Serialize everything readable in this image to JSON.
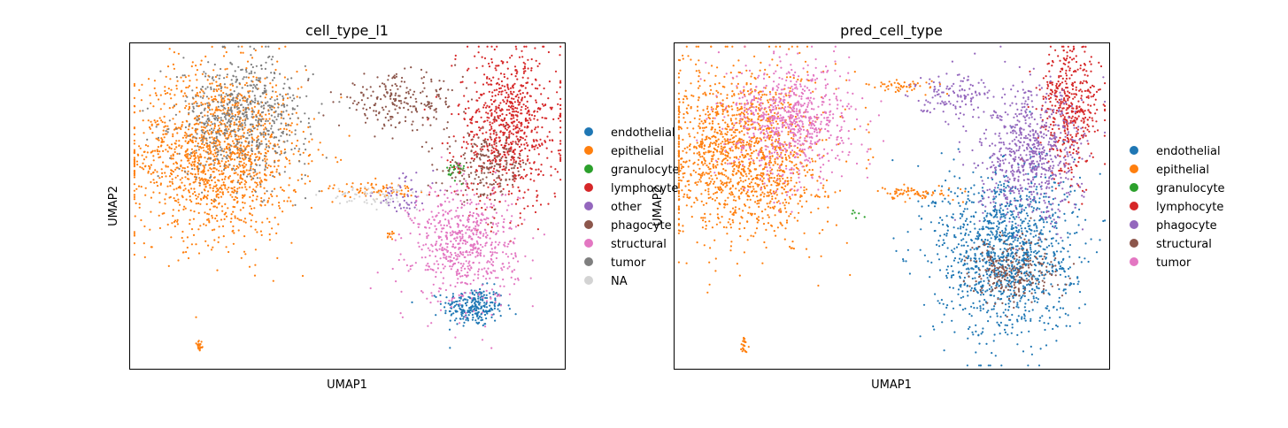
{
  "chart_data": [
    {
      "type": "scatter",
      "title": "cell_type_l1",
      "xlabel": "UMAP1",
      "ylabel": "UMAP2",
      "grid": false,
      "legend_position": "right",
      "series": [
        {
          "name": "endothelial",
          "color": "#1f77b4",
          "clusters": [
            {
              "center": [
                0.79,
                0.19
              ],
              "spread": [
                0.035,
                0.03
              ],
              "n": 260
            }
          ]
        },
        {
          "name": "epithelial",
          "color": "#ff7f0e",
          "clusters": [
            {
              "center": [
                0.2,
                0.66
              ],
              "spread": [
                0.095,
                0.13
              ],
              "n": 1500
            },
            {
              "center": [
                0.56,
                0.55
              ],
              "spread": [
                0.05,
                0.012
              ],
              "n": 70
            },
            {
              "center": [
                0.16,
                0.07
              ],
              "spread": [
                0.004,
                0.012
              ],
              "n": 22
            },
            {
              "center": [
                0.6,
                0.41
              ],
              "spread": [
                0.006,
                0.01
              ],
              "n": 10
            }
          ]
        },
        {
          "name": "granulocyte",
          "color": "#2ca02c",
          "clusters": [
            {
              "center": [
                0.75,
                0.61
              ],
              "spread": [
                0.01,
                0.016
              ],
              "n": 30
            }
          ]
        },
        {
          "name": "lymphocyte",
          "color": "#d62728",
          "clusters": [
            {
              "center": [
                0.87,
                0.74
              ],
              "spread": [
                0.06,
                0.12
              ],
              "n": 800
            }
          ]
        },
        {
          "name": "other",
          "color": "#9467bd",
          "clusters": [
            {
              "center": [
                0.63,
                0.53
              ],
              "spread": [
                0.035,
                0.035
              ],
              "n": 55
            }
          ]
        },
        {
          "name": "phagocyte",
          "color": "#8c564b",
          "clusters": [
            {
              "center": [
                0.62,
                0.82
              ],
              "spread": [
                0.07,
                0.04
              ],
              "n": 220
            },
            {
              "center": [
                0.82,
                0.62
              ],
              "spread": [
                0.05,
                0.05
              ],
              "n": 200
            }
          ]
        },
        {
          "name": "structural",
          "color": "#e377c2",
          "clusters": [
            {
              "center": [
                0.77,
                0.38
              ],
              "spread": [
                0.06,
                0.09
              ],
              "n": 650
            }
          ]
        },
        {
          "name": "tumor",
          "color": "#7f7f7f",
          "clusters": [
            {
              "center": [
                0.26,
                0.77
              ],
              "spread": [
                0.075,
                0.09
              ],
              "n": 650
            }
          ]
        },
        {
          "name": "NA",
          "color": "#d3d3d3",
          "clusters": [
            {
              "center": [
                0.56,
                0.53
              ],
              "spread": [
                0.05,
                0.015
              ],
              "n": 60
            }
          ]
        }
      ]
    },
    {
      "type": "scatter",
      "title": "pred_cell_type",
      "xlabel": "UMAP1",
      "ylabel": "UMAP2",
      "grid": false,
      "legend_position": "right",
      "series": [
        {
          "name": "endothelial",
          "color": "#1f77b4",
          "clusters": [
            {
              "center": [
                0.76,
                0.36
              ],
              "spread": [
                0.08,
                0.13
              ],
              "n": 1300
            }
          ]
        },
        {
          "name": "epithelial",
          "color": "#ff7f0e",
          "clusters": [
            {
              "center": [
                0.16,
                0.66
              ],
              "spread": [
                0.09,
                0.13
              ],
              "n": 1500
            },
            {
              "center": [
                0.56,
                0.54
              ],
              "spread": [
                0.05,
                0.012
              ],
              "n": 70
            },
            {
              "center": [
                0.53,
                0.87
              ],
              "spread": [
                0.04,
                0.01
              ],
              "n": 50
            },
            {
              "center": [
                0.16,
                0.07
              ],
              "spread": [
                0.004,
                0.012
              ],
              "n": 22
            }
          ]
        },
        {
          "name": "granulocyte",
          "color": "#2ca02c",
          "clusters": [
            {
              "center": [
                0.42,
                0.47
              ],
              "spread": [
                0.01,
                0.01
              ],
              "n": 6
            }
          ]
        },
        {
          "name": "lymphocyte",
          "color": "#d62728",
          "clusters": [
            {
              "center": [
                0.91,
                0.8
              ],
              "spread": [
                0.035,
                0.1
              ],
              "n": 450
            }
          ]
        },
        {
          "name": "phagocyte",
          "color": "#9467bd",
          "clusters": [
            {
              "center": [
                0.82,
                0.65
              ],
              "spread": [
                0.06,
                0.1
              ],
              "n": 700
            },
            {
              "center": [
                0.64,
                0.85
              ],
              "spread": [
                0.05,
                0.03
              ],
              "n": 120
            }
          ]
        },
        {
          "name": "structural",
          "color": "#8c564b",
          "clusters": [
            {
              "center": [
                0.78,
                0.3
              ],
              "spread": [
                0.05,
                0.05
              ],
              "n": 250
            }
          ]
        },
        {
          "name": "tumor",
          "color": "#e377c2",
          "clusters": [
            {
              "center": [
                0.27,
                0.76
              ],
              "spread": [
                0.07,
                0.09
              ],
              "n": 750
            }
          ]
        }
      ]
    }
  ]
}
